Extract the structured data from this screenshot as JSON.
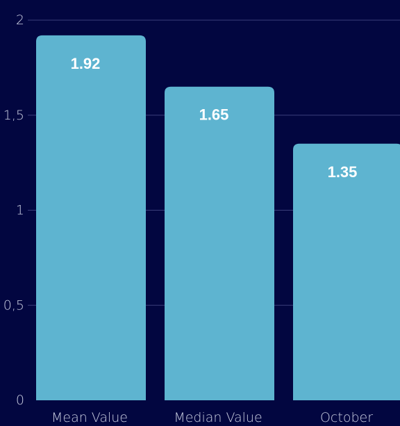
{
  "chart_data": {
    "type": "bar",
    "title": "",
    "xlabel": "",
    "ylabel": "",
    "categories": [
      "Mean Value",
      "Median Value",
      "October"
    ],
    "values": [
      1.92,
      1.65,
      1.35
    ],
    "value_labels": [
      "1.92",
      "1.65",
      "1.35"
    ],
    "ylim": [
      0,
      2
    ],
    "yticks": [
      0,
      0.5,
      1,
      1.5,
      2
    ],
    "ytick_labels": [
      "0",
      "0,5",
      "1",
      "1,5",
      "2"
    ],
    "grid": true,
    "colors": {
      "background": "#020640",
      "bar": "#5eb4d0",
      "gridline": "#3a3f7a",
      "tick_text": "#c9cde0",
      "value_text": "#ffffff"
    }
  }
}
